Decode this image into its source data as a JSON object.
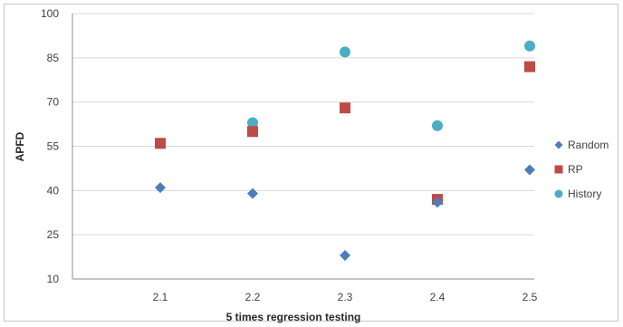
{
  "chart_data": {
    "type": "scatter",
    "title": "",
    "xlabel": "5 times regression testing",
    "ylabel": "APFD",
    "x": [
      2.1,
      2.2,
      2.3,
      2.4,
      2.5
    ],
    "x_tick_labels": [
      "2.1",
      "2.2",
      "2.3",
      "2.4",
      "2.5"
    ],
    "ylim": [
      10,
      100
    ],
    "y_ticks": [
      10,
      25,
      40,
      55,
      70,
      85,
      100
    ],
    "grid": "horizontal",
    "legend_position": "right",
    "series": [
      {
        "name": "Random",
        "marker": "diamond",
        "color": "#4a7ebb",
        "values": [
          41,
          39,
          18,
          36,
          47
        ]
      },
      {
        "name": "RP",
        "marker": "square",
        "color": "#be4b48",
        "values": [
          56,
          60,
          68,
          37,
          82
        ]
      },
      {
        "name": "History",
        "marker": "circle",
        "color": "#4bacc6",
        "values": [
          56,
          63,
          87,
          62,
          89
        ]
      }
    ]
  }
}
